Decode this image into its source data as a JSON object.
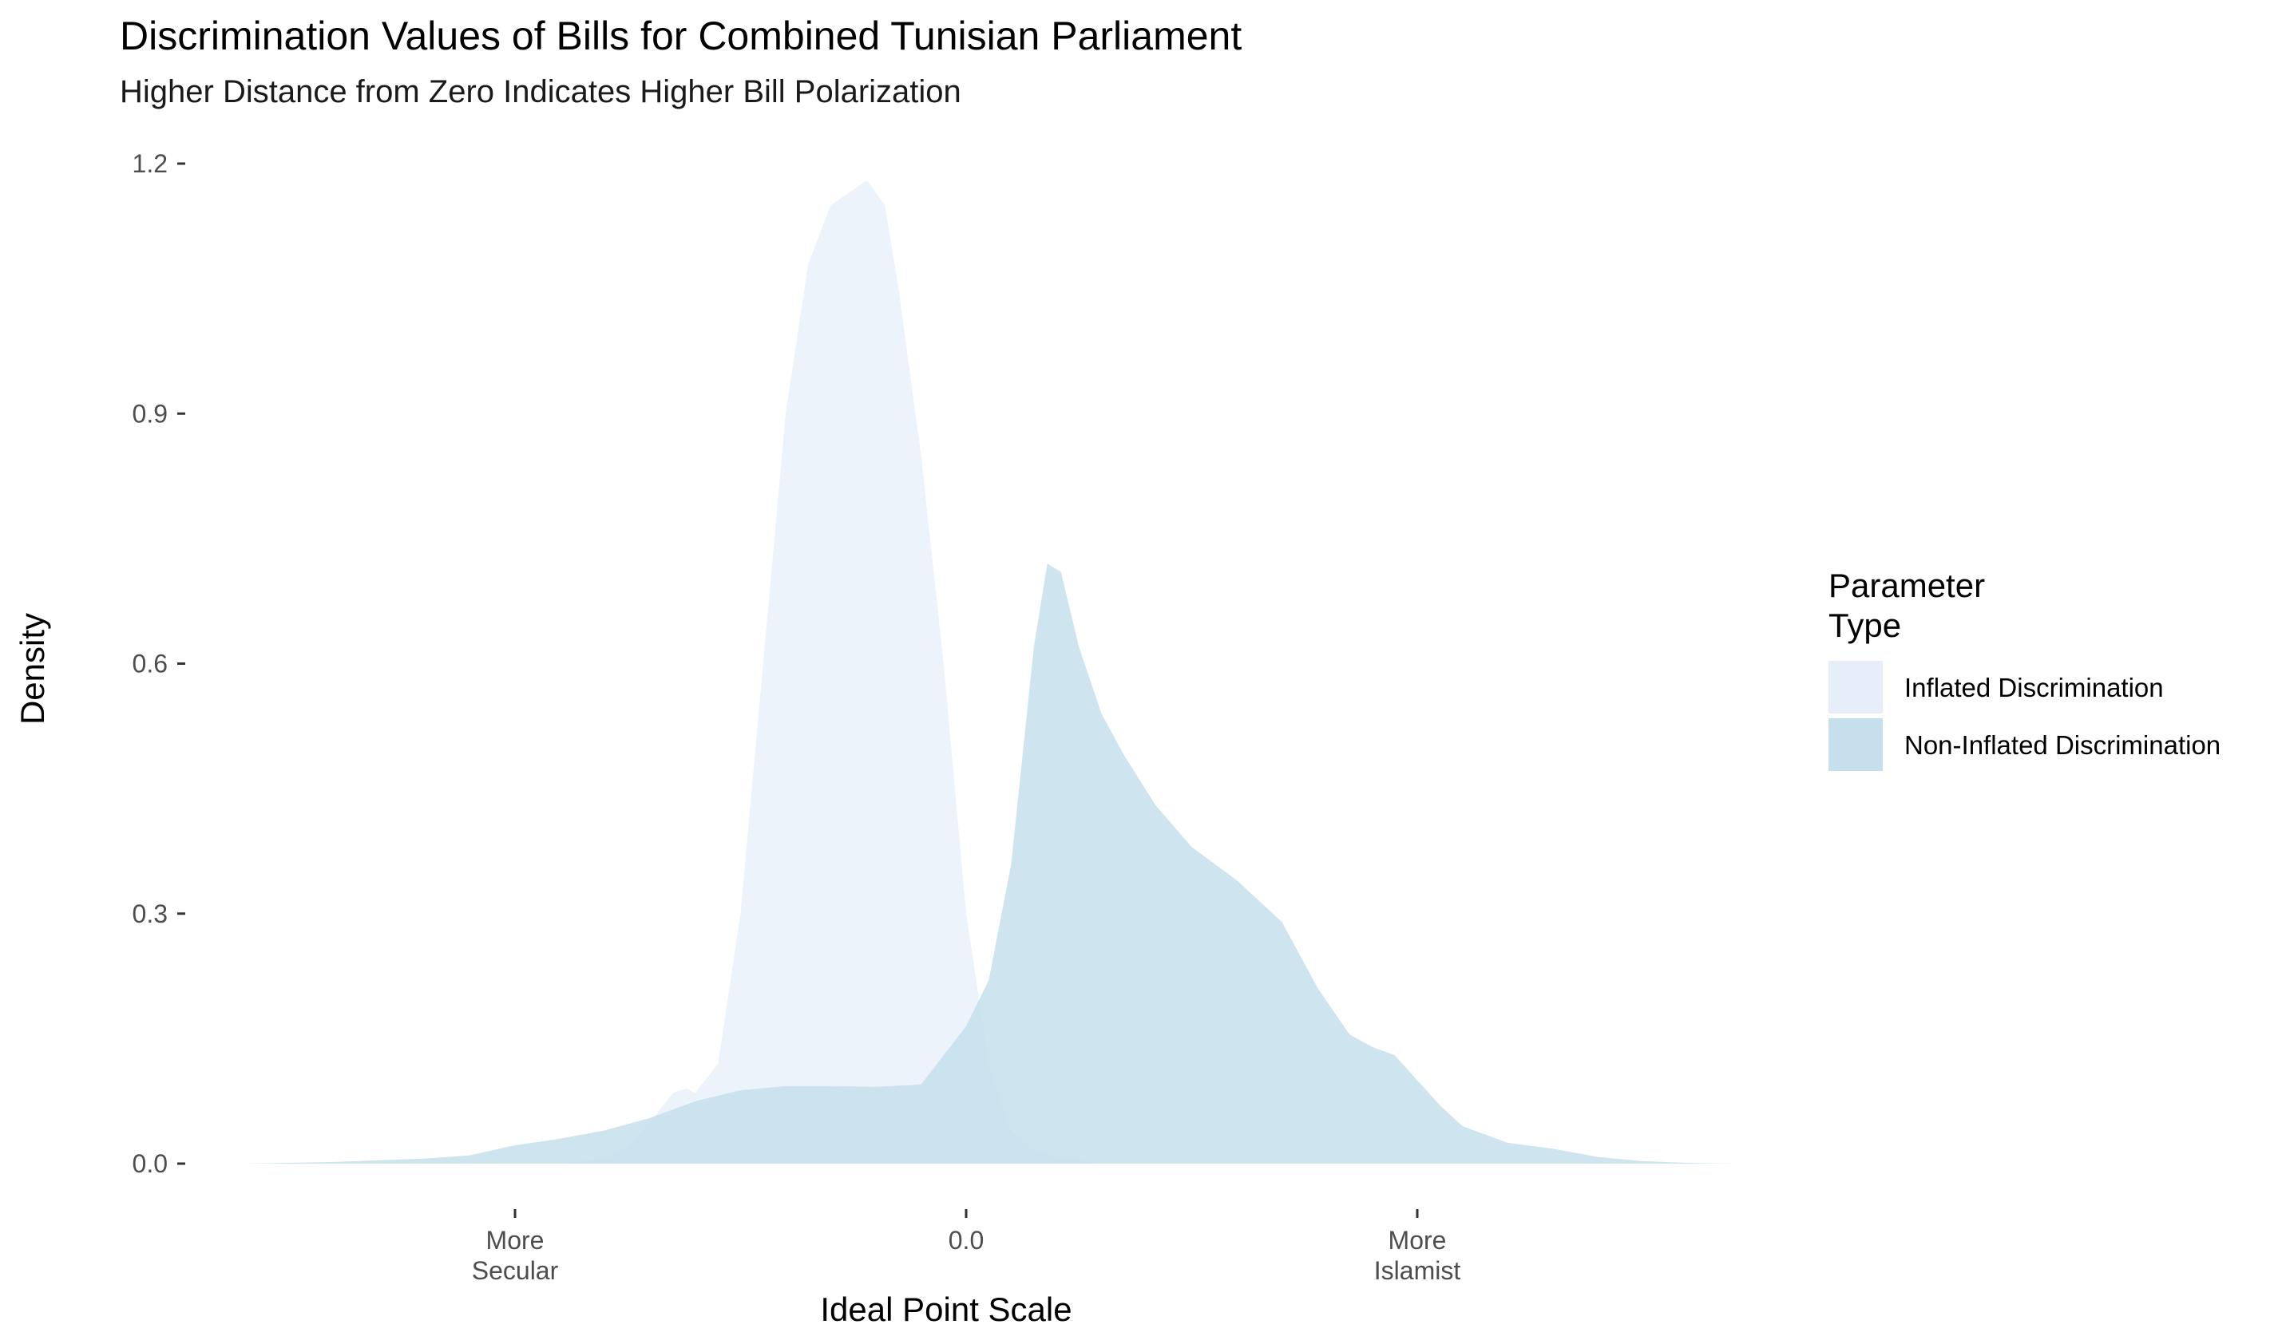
{
  "chart_data": {
    "type": "area",
    "title": "Discrimination Values of Bills for Combined Tunisian Parliament",
    "subtitle": "Higher Distance from Zero Indicates Higher Bill Polarization",
    "xlabel": "Ideal Point Scale",
    "ylabel": "Density",
    "xlim": [
      -3.3,
      3.3
    ],
    "ylim": [
      0,
      1.2
    ],
    "grid": false,
    "x_ticks": [
      {
        "value": -1.0,
        "label": [
          "More",
          "Secular"
        ]
      },
      {
        "value": 0.0,
        "label": [
          "0.0"
        ]
      },
      {
        "value": 1.0,
        "label": [
          "More",
          "Islamist"
        ]
      }
    ],
    "y_ticks": [
      {
        "value": 0.0,
        "label": "0.0"
      },
      {
        "value": 0.3,
        "label": "0.3"
      },
      {
        "value": 0.6,
        "label": "0.6"
      },
      {
        "value": 0.9,
        "label": "0.9"
      },
      {
        "value": 1.2,
        "label": "1.2"
      }
    ],
    "legend": {
      "title": [
        "Parameter",
        "Type"
      ],
      "placement": "right"
    },
    "series": [
      {
        "name": "Inflated Discrimination",
        "color": "#e6eff9",
        "opacity": 0.75,
        "points": [
          [
            -1.0,
            0.0
          ],
          [
            -0.9,
            0.001
          ],
          [
            -0.8,
            0.005
          ],
          [
            -0.75,
            0.02
          ],
          [
            -0.7,
            0.05
          ],
          [
            -0.65,
            0.085
          ],
          [
            -0.62,
            0.09
          ],
          [
            -0.6,
            0.085
          ],
          [
            -0.55,
            0.12
          ],
          [
            -0.5,
            0.3
          ],
          [
            -0.45,
            0.6
          ],
          [
            -0.4,
            0.9
          ],
          [
            -0.35,
            1.08
          ],
          [
            -0.3,
            1.15
          ],
          [
            -0.22,
            1.18
          ],
          [
            -0.18,
            1.15
          ],
          [
            -0.15,
            1.05
          ],
          [
            -0.1,
            0.85
          ],
          [
            -0.05,
            0.6
          ],
          [
            0.0,
            0.3
          ],
          [
            0.05,
            0.12
          ],
          [
            0.1,
            0.04
          ],
          [
            0.15,
            0.015
          ],
          [
            0.2,
            0.008
          ],
          [
            0.25,
            0.004
          ],
          [
            0.3,
            0.0
          ]
        ]
      },
      {
        "name": "Non-Inflated Discrimination",
        "color": "#c6dfec",
        "opacity": 0.85,
        "points": [
          [
            -1.6,
            0.0
          ],
          [
            -1.4,
            0.002
          ],
          [
            -1.2,
            0.006
          ],
          [
            -1.1,
            0.01
          ],
          [
            -1.05,
            0.016
          ],
          [
            -1.0,
            0.022
          ],
          [
            -0.9,
            0.03
          ],
          [
            -0.8,
            0.04
          ],
          [
            -0.7,
            0.055
          ],
          [
            -0.6,
            0.075
          ],
          [
            -0.5,
            0.088
          ],
          [
            -0.4,
            0.093
          ],
          [
            -0.3,
            0.093
          ],
          [
            -0.2,
            0.092
          ],
          [
            -0.1,
            0.095
          ],
          [
            -0.05,
            0.13
          ],
          [
            0.0,
            0.165
          ],
          [
            0.05,
            0.22
          ],
          [
            0.1,
            0.36
          ],
          [
            0.15,
            0.62
          ],
          [
            0.18,
            0.72
          ],
          [
            0.21,
            0.71
          ],
          [
            0.25,
            0.62
          ],
          [
            0.3,
            0.54
          ],
          [
            0.35,
            0.49
          ],
          [
            0.42,
            0.43
          ],
          [
            0.5,
            0.38
          ],
          [
            0.6,
            0.34
          ],
          [
            0.7,
            0.29
          ],
          [
            0.78,
            0.21
          ],
          [
            0.85,
            0.155
          ],
          [
            0.9,
            0.14
          ],
          [
            0.95,
            0.13
          ],
          [
            1.0,
            0.1
          ],
          [
            1.05,
            0.07
          ],
          [
            1.1,
            0.045
          ],
          [
            1.2,
            0.025
          ],
          [
            1.3,
            0.018
          ],
          [
            1.4,
            0.008
          ],
          [
            1.5,
            0.003
          ],
          [
            1.6,
            0.001
          ],
          [
            1.7,
            0.0
          ]
        ]
      }
    ]
  }
}
